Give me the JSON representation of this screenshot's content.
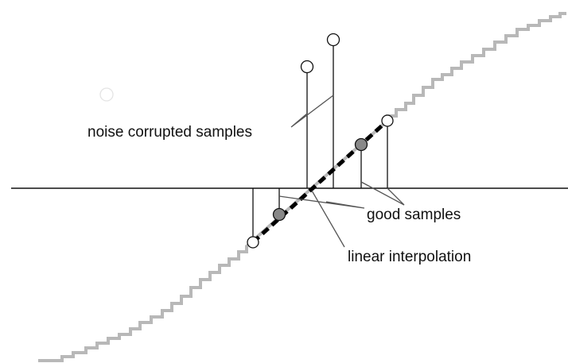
{
  "labels": {
    "noise": "noise corrupted samples",
    "good": "good samples",
    "interpolation": "linear interpolation"
  }
}
